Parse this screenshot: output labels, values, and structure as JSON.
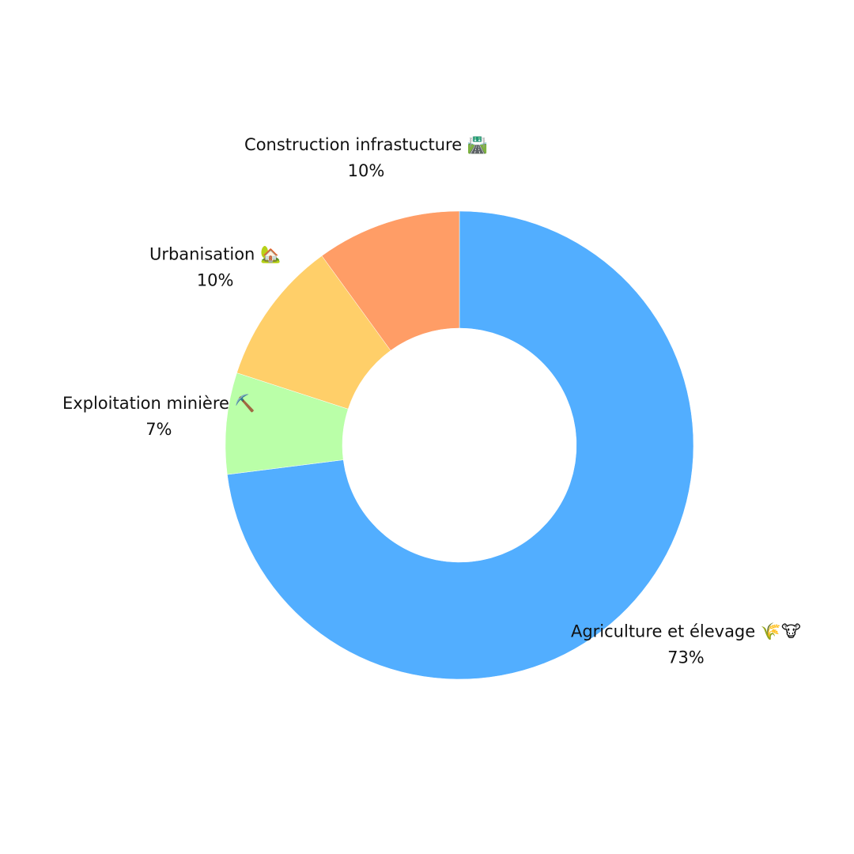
{
  "chart_data": {
    "type": "donut",
    "categories": [
      "Agriculture et élevage 🌾🐮",
      "Exploitation minière ⛏️",
      "Urbanisation 🏡",
      "Construction infrastucture 🛣️"
    ],
    "values": [
      73,
      7,
      10,
      10
    ],
    "value_labels": [
      "73%",
      "7%",
      "10%",
      "10%"
    ],
    "colors": [
      "#52aeff",
      "#baffa8",
      "#ffcf69",
      "#ff9d66"
    ]
  }
}
